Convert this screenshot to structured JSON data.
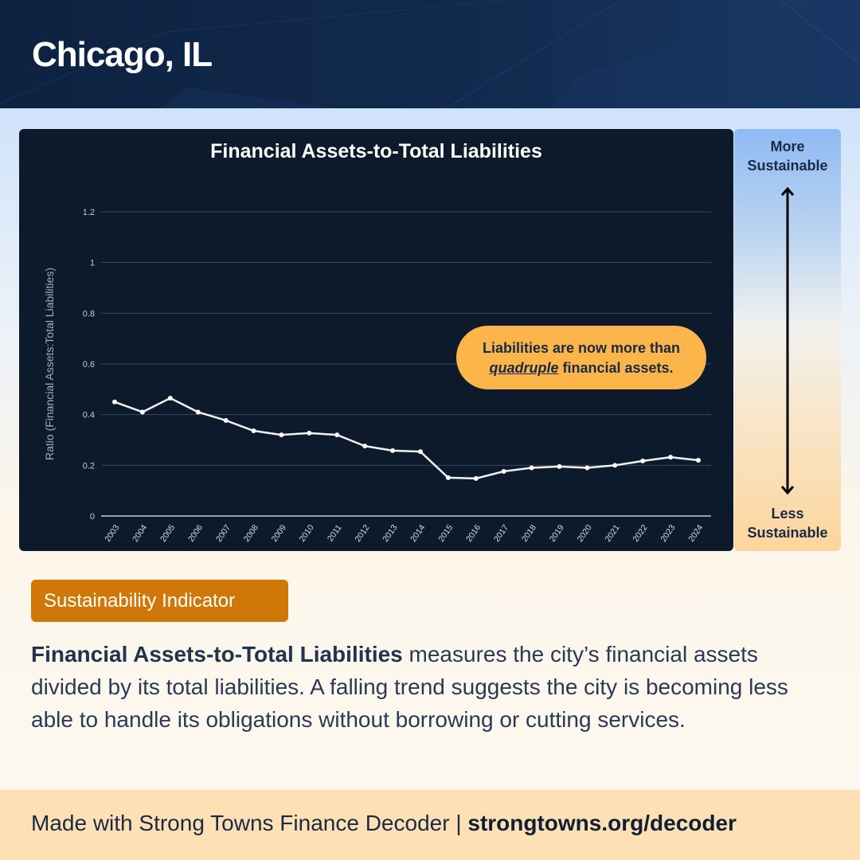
{
  "header": {
    "title": "Chicago, IL"
  },
  "chart_data": {
    "type": "line",
    "title": "Financial Assets-to-Total Liabilities",
    "xlabel": "",
    "ylabel": "Ratio (Financial Assets:Total Liabilities)",
    "ylim": [
      0,
      1.2
    ],
    "yticks": [
      "0",
      "0.2",
      "0.4",
      "0.6",
      "0.8",
      "1",
      "1.2"
    ],
    "grid": true,
    "legend": "none",
    "categories": [
      "2003",
      "2004",
      "2005",
      "2006",
      "2007",
      "2008",
      "2009",
      "2010",
      "2011",
      "2012",
      "2013",
      "2014",
      "2015",
      "2016",
      "2017",
      "2018",
      "2019",
      "2020",
      "2021",
      "2022",
      "2023",
      "2024"
    ],
    "series": [
      {
        "name": "Financial Assets-to-Total Liabilities",
        "values": [
          0.45,
          0.41,
          0.465,
          0.41,
          0.377,
          0.336,
          0.32,
          0.327,
          0.32,
          0.276,
          0.258,
          0.254,
          0.151,
          0.148,
          0.176,
          0.19,
          0.195,
          0.19,
          0.2,
          0.217,
          0.232,
          0.22
        ]
      }
    ],
    "annotation": "Liabilities are now more than quadruple financial assets."
  },
  "callout": {
    "line1": "Liabilities are now more than",
    "emphasis": "quadruple",
    "line2_rest": " financial assets."
  },
  "scale": {
    "top_label_1": "More",
    "top_label_2": "Sustainable",
    "bottom_label_1": "Less",
    "bottom_label_2": "Sustainable",
    "icon": "double-arrow-vertical-icon"
  },
  "badge": {
    "label": "Sustainability Indicator"
  },
  "description": {
    "term": "Financial Assets-to-Total Liabilities",
    "text": " measures the city’s financial assets divided by its total liabilities. A falling trend suggests the city is becoming less able to handle its obligations without borrowing or cutting services."
  },
  "footer": {
    "text": "Made with Strong Towns Finance Decoder | ",
    "link": "strongtowns.org/decoder"
  },
  "colors": {
    "header_bg": "#0e2240",
    "chart_bg": "#0c1a2c",
    "line": "#f2f2f2",
    "callout_bg": "#fbb54b",
    "badge_bg": "#cf7809",
    "footer_bg": "#fde0b4",
    "text_dark": "#1b2a44"
  }
}
